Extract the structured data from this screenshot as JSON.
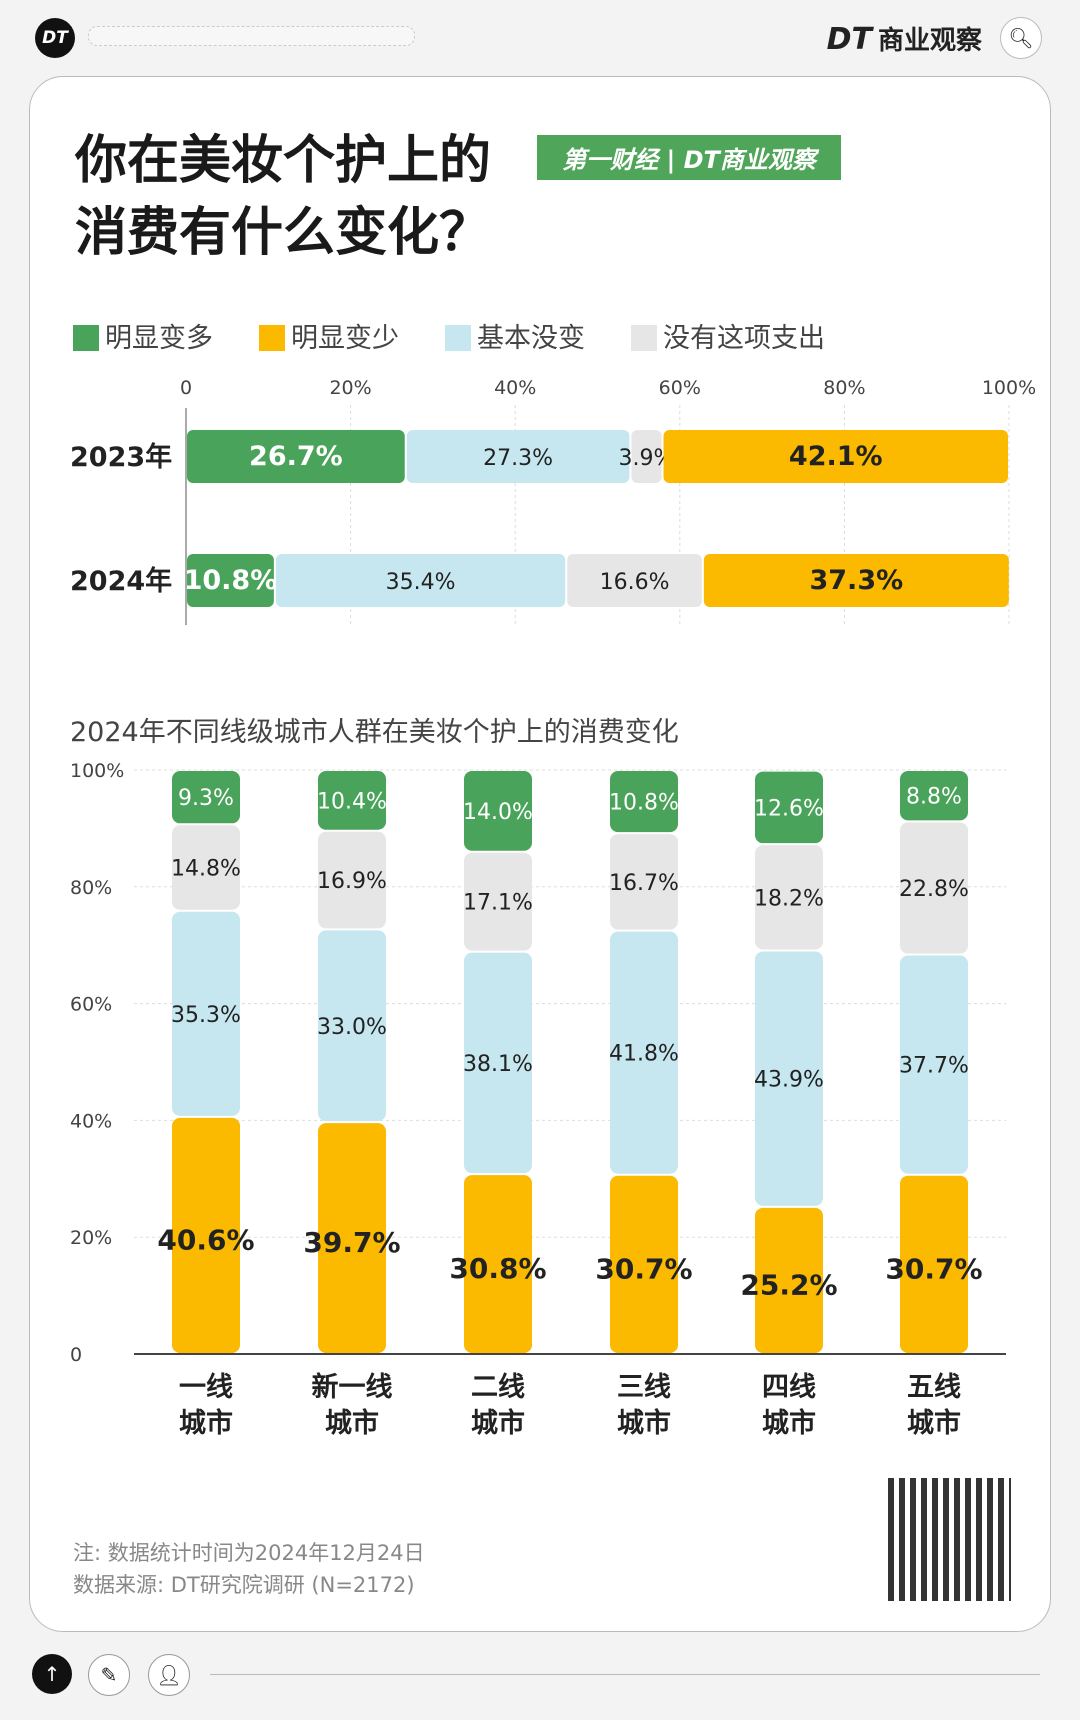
{
  "header": {
    "logo": "DT",
    "brand_mark": "DT",
    "brand_name": "商业观察",
    "search_icon": "search-icon"
  },
  "title": {
    "line1": "你在美妆个护上的",
    "line2": "消费有什么变化？",
    "badge": "第一财经 | DT商业观察"
  },
  "colors": {
    "green": "#4aa35a",
    "orange": "#fbb900",
    "blue": "#c6e7f0",
    "gray": "#e6e6e6"
  },
  "legend": [
    {
      "label": "明显变多",
      "color": "#4aa35a"
    },
    {
      "label": "明显变少",
      "color": "#fbb900"
    },
    {
      "label": "基本没变",
      "color": "#c6e7f0"
    },
    {
      "label": "没有这项支出",
      "color": "#e6e6e6"
    }
  ],
  "chart_data": [
    {
      "type": "bar",
      "orientation": "horizontal",
      "stacked": true,
      "categories": [
        "2023年",
        "2024年"
      ],
      "xticks": [
        "0",
        "20%",
        "40%",
        "60%",
        "80%",
        "100%"
      ],
      "xlim": [
        0,
        100
      ],
      "series": [
        {
          "name": "明显变多",
          "color": "#4aa35a",
          "values": [
            26.7,
            10.8
          ]
        },
        {
          "name": "基本没变",
          "color": "#c6e7f0",
          "values": [
            27.3,
            35.4
          ]
        },
        {
          "name": "没有这项支出",
          "color": "#e6e6e6",
          "values": [
            3.9,
            16.6
          ]
        },
        {
          "name": "明显变少",
          "color": "#fbb900",
          "values": [
            42.1,
            37.3
          ]
        }
      ]
    },
    {
      "type": "bar",
      "stacked": true,
      "title": "2024年不同线级城市人群在美妆个护上的消费变化",
      "categories": [
        "一线\n城市",
        "新一线\n城市",
        "二线\n城市",
        "三线\n城市",
        "四线\n城市",
        "五线\n城市"
      ],
      "yticks": [
        "0",
        "20%",
        "40%",
        "60%",
        "80%",
        "100%"
      ],
      "ylim": [
        0,
        100
      ],
      "grid": true,
      "series": [
        {
          "name": "明显变少",
          "color": "#fbb900",
          "values": [
            40.6,
            39.7,
            30.8,
            30.7,
            25.2,
            30.7
          ]
        },
        {
          "name": "基本没变",
          "color": "#c6e7f0",
          "values": [
            35.3,
            33.0,
            38.1,
            41.8,
            43.9,
            37.7
          ]
        },
        {
          "name": "没有这项支出",
          "color": "#e6e6e6",
          "values": [
            14.8,
            16.9,
            17.1,
            16.7,
            18.2,
            22.8
          ]
        },
        {
          "name": "明显变多",
          "color": "#4aa35a",
          "values": [
            9.3,
            10.4,
            14.0,
            10.8,
            12.6,
            8.8
          ]
        }
      ]
    }
  ],
  "footer": {
    "note": "注: 数据统计时间为2024年12月24日",
    "source": "数据来源: DT研究院调研 (N=2172)"
  }
}
